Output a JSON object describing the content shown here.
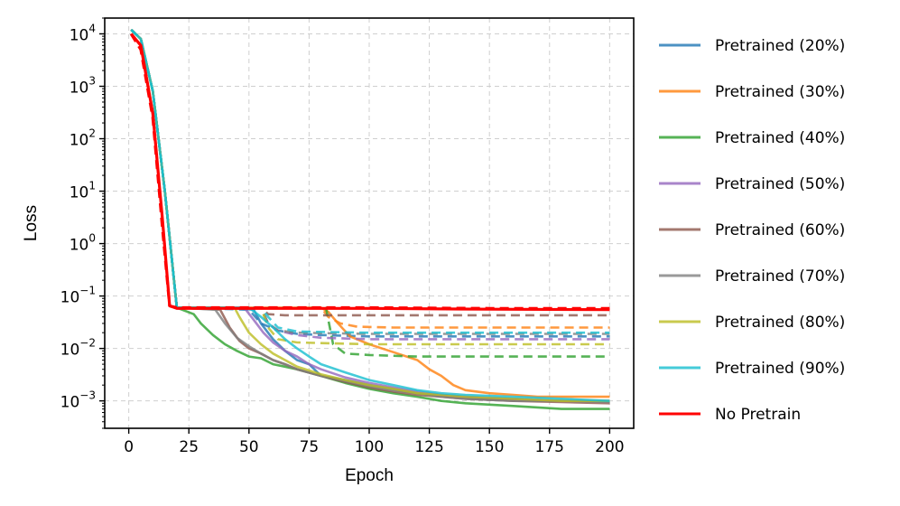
{
  "chart_data": {
    "type": "line",
    "xlabel": "Epoch",
    "ylabel": "Loss",
    "yscale": "log",
    "xlim": [
      -10,
      210
    ],
    "ylim": [
      0.0003,
      20000
    ],
    "xticks": [
      0,
      25,
      50,
      75,
      100,
      125,
      150,
      175,
      200
    ],
    "yticks": [
      {
        "value": 0.001,
        "base": "10",
        "exp": "−3"
      },
      {
        "value": 0.01,
        "base": "10",
        "exp": "−2"
      },
      {
        "value": 0.1,
        "base": "10",
        "exp": "−1"
      },
      {
        "value": 1,
        "base": "10",
        "exp": "0"
      },
      {
        "value": 10,
        "base": "10",
        "exp": "1"
      },
      {
        "value": 100,
        "base": "10",
        "exp": "2"
      },
      {
        "value": 1000,
        "base": "10",
        "exp": "3"
      },
      {
        "value": 10000,
        "base": "10",
        "exp": "4"
      }
    ],
    "grid": true,
    "legend_position": "outside-right",
    "series": [
      {
        "name": "Pretrained (20%)",
        "color": "#1f77b4",
        "solid": [
          [
            1,
            12000
          ],
          [
            5,
            8000
          ],
          [
            10,
            800
          ],
          [
            15,
            10
          ],
          [
            20,
            0.06
          ],
          [
            40,
            0.06
          ],
          [
            52,
            0.055
          ],
          [
            55,
            0.03
          ],
          [
            60,
            0.015
          ],
          [
            65,
            0.009
          ],
          [
            70,
            0.006
          ],
          [
            75,
            0.005
          ],
          [
            80,
            0.003
          ],
          [
            90,
            0.0025
          ],
          [
            100,
            0.002
          ],
          [
            110,
            0.0017
          ],
          [
            120,
            0.0014
          ],
          [
            130,
            0.0013
          ],
          [
            140,
            0.0012
          ],
          [
            150,
            0.0011
          ],
          [
            160,
            0.0011
          ],
          [
            170,
            0.001
          ],
          [
            180,
            0.001
          ],
          [
            190,
            0.001
          ],
          [
            200,
            0.001
          ]
        ],
        "dashed": [
          [
            1,
            12000
          ],
          [
            5,
            8000
          ],
          [
            10,
            800
          ],
          [
            15,
            10
          ],
          [
            20,
            0.06
          ],
          [
            50,
            0.055
          ],
          [
            55,
            0.03
          ],
          [
            62,
            0.022
          ],
          [
            70,
            0.019
          ],
          [
            80,
            0.018
          ],
          [
            100,
            0.017
          ],
          [
            200,
            0.017
          ]
        ]
      },
      {
        "name": "Pretrained (30%)",
        "color": "#ff7f0e",
        "solid": [
          [
            1,
            12000
          ],
          [
            5,
            8000
          ],
          [
            10,
            800
          ],
          [
            15,
            10
          ],
          [
            20,
            0.06
          ],
          [
            80,
            0.06
          ],
          [
            83,
            0.05
          ],
          [
            87,
            0.03
          ],
          [
            92,
            0.017
          ],
          [
            100,
            0.012
          ],
          [
            110,
            0.0085
          ],
          [
            120,
            0.006
          ],
          [
            125,
            0.004
          ],
          [
            130,
            0.003
          ],
          [
            135,
            0.002
          ],
          [
            140,
            0.0016
          ],
          [
            150,
            0.0014
          ],
          [
            160,
            0.0013
          ],
          [
            170,
            0.0012
          ],
          [
            180,
            0.0012
          ],
          [
            190,
            0.0012
          ],
          [
            200,
            0.0012
          ]
        ],
        "dashed": [
          [
            1,
            12000
          ],
          [
            5,
            8000
          ],
          [
            10,
            800
          ],
          [
            15,
            10
          ],
          [
            20,
            0.06
          ],
          [
            80,
            0.06
          ],
          [
            83,
            0.04
          ],
          [
            88,
            0.03
          ],
          [
            95,
            0.026
          ],
          [
            110,
            0.025
          ],
          [
            150,
            0.025
          ],
          [
            200,
            0.025
          ]
        ]
      },
      {
        "name": "Pretrained (40%)",
        "color": "#2ca02c",
        "solid": [
          [
            1,
            12000
          ],
          [
            5,
            8000
          ],
          [
            10,
            800
          ],
          [
            15,
            10
          ],
          [
            20,
            0.06
          ],
          [
            27,
            0.045
          ],
          [
            30,
            0.03
          ],
          [
            35,
            0.018
          ],
          [
            40,
            0.012
          ],
          [
            45,
            0.009
          ],
          [
            50,
            0.007
          ],
          [
            55,
            0.0065
          ],
          [
            60,
            0.005
          ],
          [
            65,
            0.0045
          ],
          [
            70,
            0.004
          ],
          [
            80,
            0.003
          ],
          [
            90,
            0.0022
          ],
          [
            100,
            0.0017
          ],
          [
            110,
            0.0014
          ],
          [
            120,
            0.0012
          ],
          [
            130,
            0.001
          ],
          [
            140,
            0.0009
          ],
          [
            150,
            0.00085
          ],
          [
            160,
            0.0008
          ],
          [
            170,
            0.00075
          ],
          [
            180,
            0.0007
          ],
          [
            190,
            0.0007
          ],
          [
            200,
            0.0007
          ]
        ],
        "dashed": [
          [
            1,
            12000
          ],
          [
            5,
            8000
          ],
          [
            10,
            800
          ],
          [
            15,
            10
          ],
          [
            20,
            0.06
          ],
          [
            82,
            0.06
          ],
          [
            85,
            0.012
          ],
          [
            90,
            0.008
          ],
          [
            100,
            0.0075
          ],
          [
            120,
            0.007
          ],
          [
            150,
            0.007
          ],
          [
            200,
            0.007
          ]
        ]
      },
      {
        "name": "Pretrained (50%)",
        "color": "#9467bd",
        "solid": [
          [
            1,
            12000
          ],
          [
            5,
            8000
          ],
          [
            10,
            800
          ],
          [
            15,
            10
          ],
          [
            20,
            0.06
          ],
          [
            48,
            0.06
          ],
          [
            52,
            0.035
          ],
          [
            56,
            0.02
          ],
          [
            60,
            0.013
          ],
          [
            65,
            0.009
          ],
          [
            70,
            0.007
          ],
          [
            75,
            0.005
          ],
          [
            80,
            0.004
          ],
          [
            90,
            0.0028
          ],
          [
            100,
            0.0022
          ],
          [
            110,
            0.0018
          ],
          [
            120,
            0.0015
          ],
          [
            130,
            0.0013
          ],
          [
            140,
            0.0012
          ],
          [
            160,
            0.0011
          ],
          [
            180,
            0.001
          ],
          [
            200,
            0.001
          ]
        ],
        "dashed": [
          [
            1,
            12000
          ],
          [
            5,
            8000
          ],
          [
            10,
            800
          ],
          [
            15,
            10
          ],
          [
            20,
            0.06
          ],
          [
            55,
            0.06
          ],
          [
            58,
            0.03
          ],
          [
            62,
            0.022
          ],
          [
            70,
            0.018
          ],
          [
            80,
            0.016
          ],
          [
            100,
            0.015
          ],
          [
            200,
            0.015
          ]
        ]
      },
      {
        "name": "Pretrained (60%)",
        "color": "#8c564b",
        "solid": [
          [
            1,
            12000
          ],
          [
            5,
            8000
          ],
          [
            10,
            800
          ],
          [
            15,
            10
          ],
          [
            20,
            0.06
          ],
          [
            38,
            0.055
          ],
          [
            42,
            0.025
          ],
          [
            46,
            0.014
          ],
          [
            50,
            0.01
          ],
          [
            55,
            0.008
          ],
          [
            60,
            0.006
          ],
          [
            65,
            0.005
          ],
          [
            70,
            0.004
          ],
          [
            80,
            0.003
          ],
          [
            90,
            0.0023
          ],
          [
            100,
            0.0018
          ],
          [
            110,
            0.0015
          ],
          [
            120,
            0.0013
          ],
          [
            130,
            0.0012
          ],
          [
            140,
            0.0011
          ],
          [
            160,
            0.001
          ],
          [
            180,
            0.00095
          ],
          [
            200,
            0.0009
          ]
        ],
        "dashed": [
          [
            1,
            12000
          ],
          [
            5,
            8000
          ],
          [
            10,
            800
          ],
          [
            15,
            10
          ],
          [
            20,
            0.06
          ],
          [
            55,
            0.06
          ],
          [
            58,
            0.045
          ],
          [
            65,
            0.043
          ],
          [
            100,
            0.043
          ],
          [
            200,
            0.043
          ]
        ]
      },
      {
        "name": "Pretrained (70%)",
        "color": "#7f7f7f",
        "solid": [
          [
            1,
            12000
          ],
          [
            5,
            8000
          ],
          [
            10,
            800
          ],
          [
            15,
            10
          ],
          [
            20,
            0.06
          ],
          [
            36,
            0.055
          ],
          [
            40,
            0.03
          ],
          [
            45,
            0.016
          ],
          [
            50,
            0.011
          ],
          [
            55,
            0.008
          ],
          [
            60,
            0.006
          ],
          [
            65,
            0.005
          ],
          [
            70,
            0.004
          ],
          [
            80,
            0.003
          ],
          [
            90,
            0.0024
          ],
          [
            100,
            0.0019
          ],
          [
            110,
            0.0016
          ],
          [
            120,
            0.0014
          ],
          [
            130,
            0.0012
          ],
          [
            140,
            0.0011
          ],
          [
            160,
            0.001
          ],
          [
            180,
            0.001
          ],
          [
            200,
            0.00095
          ]
        ],
        "dashed": [
          [
            1,
            12000
          ],
          [
            5,
            8000
          ],
          [
            10,
            800
          ],
          [
            15,
            10
          ],
          [
            20,
            0.06
          ],
          [
            55,
            0.06
          ],
          [
            58,
            0.03
          ],
          [
            62,
            0.022
          ],
          [
            70,
            0.02
          ],
          [
            100,
            0.019
          ],
          [
            200,
            0.019
          ]
        ]
      },
      {
        "name": "Pretrained (80%)",
        "color": "#bcbd22",
        "solid": [
          [
            1,
            12000
          ],
          [
            5,
            8000
          ],
          [
            10,
            800
          ],
          [
            15,
            10
          ],
          [
            20,
            0.06
          ],
          [
            44,
            0.06
          ],
          [
            46,
            0.04
          ],
          [
            50,
            0.02
          ],
          [
            55,
            0.012
          ],
          [
            60,
            0.008
          ],
          [
            65,
            0.006
          ],
          [
            70,
            0.0045
          ],
          [
            80,
            0.0032
          ],
          [
            90,
            0.0025
          ],
          [
            100,
            0.002
          ],
          [
            110,
            0.0017
          ],
          [
            120,
            0.0014
          ],
          [
            130,
            0.0013
          ],
          [
            140,
            0.0012
          ],
          [
            160,
            0.0011
          ],
          [
            180,
            0.001
          ],
          [
            200,
            0.001
          ]
        ],
        "dashed": [
          [
            1,
            12000
          ],
          [
            5,
            8000
          ],
          [
            10,
            800
          ],
          [
            15,
            10
          ],
          [
            20,
            0.06
          ],
          [
            55,
            0.06
          ],
          [
            58,
            0.025
          ],
          [
            62,
            0.015
          ],
          [
            70,
            0.013
          ],
          [
            100,
            0.012
          ],
          [
            200,
            0.012
          ]
        ]
      },
      {
        "name": "Pretrained (90%)",
        "color": "#17becf",
        "solid": [
          [
            1,
            12000
          ],
          [
            5,
            8000
          ],
          [
            10,
            800
          ],
          [
            15,
            10
          ],
          [
            20,
            0.06
          ],
          [
            50,
            0.06
          ],
          [
            55,
            0.04
          ],
          [
            60,
            0.025
          ],
          [
            65,
            0.015
          ],
          [
            70,
            0.01
          ],
          [
            75,
            0.007
          ],
          [
            80,
            0.005
          ],
          [
            90,
            0.0035
          ],
          [
            100,
            0.0025
          ],
          [
            110,
            0.002
          ],
          [
            120,
            0.0016
          ],
          [
            130,
            0.0014
          ],
          [
            140,
            0.0013
          ],
          [
            160,
            0.0012
          ],
          [
            180,
            0.0011
          ],
          [
            200,
            0.001
          ]
        ],
        "dashed": [
          [
            1,
            12000
          ],
          [
            5,
            8000
          ],
          [
            10,
            800
          ],
          [
            15,
            10
          ],
          [
            20,
            0.06
          ],
          [
            55,
            0.06
          ],
          [
            58,
            0.04
          ],
          [
            62,
            0.025
          ],
          [
            70,
            0.021
          ],
          [
            100,
            0.02
          ],
          [
            200,
            0.02
          ]
        ]
      },
      {
        "name": "No Pretrain",
        "color": "#ff0000",
        "solid": [
          [
            1,
            10000
          ],
          [
            5,
            6000
          ],
          [
            10,
            300
          ],
          [
            14,
            3
          ],
          [
            17,
            0.065
          ],
          [
            20,
            0.058
          ],
          [
            50,
            0.058
          ],
          [
            100,
            0.058
          ],
          [
            150,
            0.056
          ],
          [
            200,
            0.055
          ]
        ],
        "dashed": [
          [
            1,
            10000
          ],
          [
            5,
            5000
          ],
          [
            10,
            250
          ],
          [
            14,
            2
          ],
          [
            17,
            0.065
          ],
          [
            20,
            0.06
          ],
          [
            50,
            0.06
          ],
          [
            100,
            0.06
          ],
          [
            150,
            0.058
          ],
          [
            200,
            0.058
          ]
        ]
      }
    ]
  }
}
